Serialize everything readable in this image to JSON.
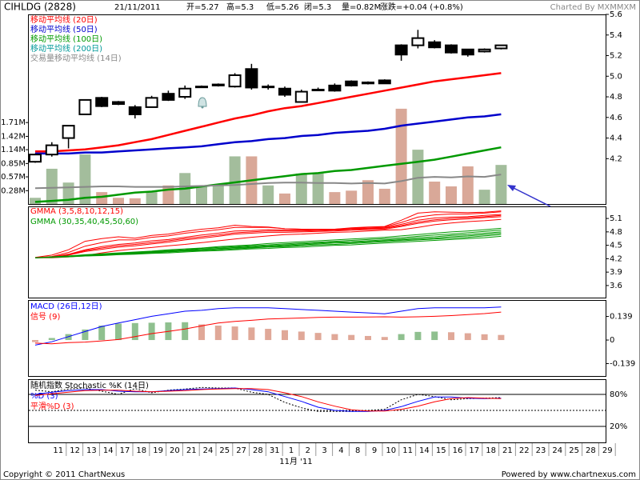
{
  "x_axis": {
    "categories": [
      null,
      "11",
      "12",
      "13",
      "14",
      "17",
      "18",
      "19",
      "20",
      "21",
      "24",
      "25",
      "27",
      "28",
      "31",
      "1",
      "2",
      "3",
      "4",
      "8",
      "9",
      "10",
      "11",
      "14",
      "15",
      "16",
      "17",
      "18",
      "21",
      "22",
      "23",
      "24",
      "25",
      "28",
      "29"
    ],
    "label": "11月 '11"
  },
  "footer": {
    "copyright": "Copyright © 2011 ChartNexus",
    "powered": "Powered by www.chartnexus.com"
  },
  "chart_data": [
    {
      "type": "candlestick",
      "title": "CIHLDG (2828)",
      "date": "21/11/2011",
      "quote": [
        "开=5.27",
        "高=5.3",
        "低=5.26",
        "闭=5.3",
        "量=0.82M",
        "涨跌=+0.04 (+0.8%)"
      ],
      "credit": "Charted By MXMMXM",
      "open": [
        4.17,
        4.24,
        4.4,
        4.63,
        4.79,
        4.75,
        4.7,
        4.7,
        4.83,
        4.8,
        4.9,
        4.91,
        4.9,
        5.07,
        4.9,
        4.88,
        4.75,
        4.87,
        4.91,
        4.95,
        4.94,
        4.96,
        5.3,
        5.3,
        5.33,
        5.3,
        5.26,
        5.24,
        5.27
      ],
      "high": [
        4.25,
        4.36,
        4.52,
        4.77,
        4.8,
        4.76,
        4.72,
        4.81,
        4.86,
        4.91,
        4.91,
        4.93,
        5.03,
        5.12,
        4.92,
        4.9,
        4.87,
        4.89,
        4.93,
        4.96,
        4.95,
        4.97,
        5.31,
        5.45,
        5.35,
        5.31,
        5.26,
        5.27,
        5.3
      ],
      "low": [
        4.16,
        4.22,
        4.3,
        4.63,
        4.7,
        4.72,
        4.59,
        4.7,
        4.76,
        4.78,
        4.89,
        4.9,
        4.89,
        4.87,
        4.87,
        4.8,
        4.75,
        4.86,
        4.85,
        4.9,
        4.92,
        4.93,
        5.15,
        5.27,
        5.27,
        5.22,
        5.19,
        5.23,
        5.26
      ],
      "close": [
        4.24,
        4.33,
        4.52,
        4.77,
        4.71,
        4.73,
        4.63,
        4.79,
        4.77,
        4.88,
        4.9,
        4.92,
        5.01,
        4.89,
        4.9,
        4.82,
        4.85,
        4.87,
        4.86,
        4.91,
        4.93,
        4.93,
        5.21,
        5.37,
        5.28,
        5.23,
        5.21,
        5.26,
        5.3
      ],
      "up_color": "#ffffff",
      "down_color": "#000000",
      "series": [
        {
          "name": "移动平均线 (20日)",
          "color": "#ff0000",
          "values": [
            4.27,
            4.27,
            4.28,
            4.29,
            4.31,
            4.33,
            4.36,
            4.39,
            4.43,
            4.47,
            4.51,
            4.55,
            4.59,
            4.62,
            4.66,
            4.69,
            4.71,
            4.74,
            4.77,
            4.8,
            4.83,
            4.86,
            4.89,
            4.92,
            4.95,
            4.97,
            4.99,
            5.01,
            5.03
          ]
        },
        {
          "name": "移动平均线 (50日)",
          "color": "#0000cc",
          "values": [
            4.25,
            4.25,
            4.25,
            4.26,
            4.26,
            4.27,
            4.28,
            4.29,
            4.3,
            4.31,
            4.32,
            4.34,
            4.36,
            4.37,
            4.39,
            4.4,
            4.42,
            4.43,
            4.45,
            4.46,
            4.47,
            4.49,
            4.52,
            4.54,
            4.56,
            4.58,
            4.6,
            4.61,
            4.63
          ]
        },
        {
          "name": "移动平均线 (100日)",
          "color": "#009900",
          "values": [
            3.78,
            3.79,
            3.8,
            3.82,
            3.83,
            3.85,
            3.87,
            3.88,
            3.9,
            3.91,
            3.93,
            3.95,
            3.97,
            3.99,
            4.01,
            4.03,
            4.05,
            4.06,
            4.08,
            4.09,
            4.11,
            4.13,
            4.15,
            4.17,
            4.19,
            4.22,
            4.25,
            4.28,
            4.31
          ]
        },
        {
          "name": "移动平均线 (200日)",
          "color": "#009999",
          "values": [
            null,
            null,
            null,
            null,
            null,
            null,
            null,
            null,
            null,
            null,
            null,
            null,
            null,
            null,
            null,
            null,
            null,
            null,
            null,
            null,
            null,
            null,
            null,
            null,
            null,
            null,
            null,
            null,
            null
          ]
        },
        {
          "name": "交易量移动平均线 (14日)",
          "color": "#888888",
          "axis": "y2",
          "values": [
            0.33,
            0.34,
            0.35,
            0.36,
            0.37,
            0.37,
            0.36,
            0.36,
            0.36,
            0.37,
            0.38,
            0.39,
            0.4,
            0.42,
            0.44,
            0.45,
            0.45,
            0.44,
            0.44,
            0.43,
            0.44,
            0.43,
            0.48,
            0.55,
            0.57,
            0.56,
            0.58,
            0.57,
            0.62
          ]
        }
      ],
      "volume": {
        "values": [
          0.13,
          0.74,
          0.45,
          1.04,
          0.25,
          0.13,
          0.12,
          0.25,
          0.39,
          0.65,
          0.39,
          0.4,
          1.0,
          1.0,
          0.39,
          0.22,
          0.64,
          0.64,
          0.25,
          0.28,
          0.5,
          0.32,
          2.0,
          1.14,
          0.47,
          0.37,
          0.79,
          0.3,
          0.82
        ],
        "up_color": "#a3bd9c",
        "down_color": "#d9a898"
      },
      "ylim": [
        3.76,
        5.6
      ],
      "yticks": [
        4.2,
        4.4,
        4.6,
        4.8,
        {
          "value": 5,
          "label": "5.0"
        },
        5.2,
        5.4,
        5.6
      ],
      "y2lim": [
        0,
        3.98
      ],
      "y2ticks": [
        {
          "value": 0.28,
          "label": "0.28M"
        },
        {
          "value": 0.57,
          "label": "0.57M"
        },
        {
          "value": 0.85,
          "label": "0.85M"
        },
        {
          "value": 1.14,
          "label": "1.14M"
        },
        {
          "value": 1.42,
          "label": "1.42M"
        },
        {
          "value": 1.71,
          "label": "1.71M"
        }
      ]
    },
    {
      "type": "line",
      "legend": [
        {
          "name": "GMMA (3,5,8,10,12,15)",
          "color": "#ff0000"
        },
        {
          "name": "GMMA (30,35,40,45,50,60)",
          "color": "#009900"
        }
      ],
      "series": [
        {
          "color": "#ff0000",
          "values": [
            4.23,
            4.28,
            4.4,
            4.59,
            4.65,
            4.69,
            4.66,
            4.72,
            4.75,
            4.81,
            4.86,
            4.89,
            4.95,
            4.92,
            4.91,
            4.87,
            4.86,
            4.86,
            4.86,
            4.89,
            4.91,
            4.92,
            5.06,
            5.22,
            5.25,
            5.24,
            5.23,
            5.24,
            5.27
          ]
        },
        {
          "color": "#ff0000",
          "values": [
            4.22,
            4.25,
            4.34,
            4.48,
            4.56,
            4.62,
            4.62,
            4.68,
            4.71,
            4.77,
            4.81,
            4.85,
            4.9,
            4.9,
            4.9,
            4.87,
            4.86,
            4.86,
            4.86,
            4.88,
            4.9,
            4.91,
            5.01,
            5.13,
            5.18,
            5.2,
            5.2,
            5.22,
            5.25
          ]
        },
        {
          "color": "#ff0000",
          "values": [
            4.22,
            4.24,
            4.3,
            4.4,
            4.47,
            4.52,
            4.55,
            4.6,
            4.63,
            4.68,
            4.73,
            4.77,
            4.82,
            4.83,
            4.85,
            4.84,
            4.84,
            4.85,
            4.85,
            4.87,
            4.88,
            4.89,
            4.97,
            5.06,
            5.11,
            5.13,
            5.14,
            5.17,
            5.19
          ]
        },
        {
          "color": "#ff0000",
          "values": [
            4.22,
            4.24,
            4.29,
            4.38,
            4.44,
            4.49,
            4.52,
            4.56,
            4.6,
            4.65,
            4.69,
            4.73,
            4.78,
            4.8,
            4.82,
            4.82,
            4.82,
            4.83,
            4.84,
            4.85,
            4.87,
            4.88,
            4.94,
            5.02,
            5.07,
            5.1,
            5.12,
            5.14,
            5.17
          ]
        },
        {
          "color": "#ff0000",
          "values": [
            4.22,
            4.24,
            4.28,
            4.36,
            4.41,
            4.46,
            4.49,
            4.53,
            4.57,
            4.62,
            4.66,
            4.7,
            4.75,
            4.77,
            4.79,
            4.79,
            4.8,
            4.81,
            4.82,
            4.84,
            4.85,
            4.86,
            4.92,
            4.99,
            5.04,
            5.07,
            5.09,
            5.12,
            5.14
          ]
        },
        {
          "color": "#ff0000",
          "values": [
            4.22,
            4.22,
            4.24,
            4.27,
            4.33,
            4.38,
            4.42,
            4.45,
            4.49,
            4.52,
            4.56,
            4.6,
            4.64,
            4.68,
            4.71,
            4.74,
            4.75,
            4.77,
            4.79,
            4.8,
            4.82,
            4.84,
            4.85,
            4.9,
            4.96,
            5.0,
            5.03,
            5.05,
            5.08
          ]
        },
        {
          "color": "#009900",
          "values": [
            4.22,
            4.24,
            4.26,
            4.29,
            4.31,
            4.33,
            4.35,
            4.37,
            4.4,
            4.42,
            4.44,
            4.47,
            4.49,
            4.51,
            4.54,
            4.56,
            4.58,
            4.6,
            4.62,
            4.64,
            4.66,
            4.68,
            4.71,
            4.74,
            4.77,
            4.8,
            4.82,
            4.85,
            4.88
          ]
        },
        {
          "color": "#009900",
          "values": [
            4.22,
            4.24,
            4.26,
            4.28,
            4.3,
            4.32,
            4.34,
            4.36,
            4.38,
            4.4,
            4.43,
            4.45,
            4.47,
            4.49,
            4.51,
            4.53,
            4.55,
            4.57,
            4.59,
            4.61,
            4.63,
            4.65,
            4.67,
            4.7,
            4.73,
            4.75,
            4.78,
            4.81,
            4.84
          ]
        },
        {
          "color": "#009900",
          "values": [
            4.22,
            4.24,
            4.25,
            4.27,
            4.29,
            4.31,
            4.33,
            4.35,
            4.37,
            4.39,
            4.41,
            4.43,
            4.45,
            4.47,
            4.49,
            4.51,
            4.53,
            4.55,
            4.57,
            4.58,
            4.6,
            4.62,
            4.64,
            4.67,
            4.69,
            4.72,
            4.74,
            4.77,
            4.8
          ]
        },
        {
          "color": "#009900",
          "values": [
            4.22,
            4.23,
            4.25,
            4.27,
            4.28,
            4.3,
            4.32,
            4.34,
            4.36,
            4.38,
            4.4,
            4.42,
            4.44,
            4.45,
            4.47,
            4.49,
            4.51,
            4.53,
            4.55,
            4.56,
            4.58,
            4.6,
            4.62,
            4.64,
            4.66,
            4.69,
            4.71,
            4.74,
            4.77
          ]
        },
        {
          "color": "#009900",
          "values": [
            4.22,
            4.23,
            4.25,
            4.26,
            4.28,
            4.3,
            4.31,
            4.33,
            4.35,
            4.37,
            4.38,
            4.4,
            4.42,
            4.44,
            4.46,
            4.47,
            4.49,
            4.51,
            4.52,
            4.54,
            4.56,
            4.58,
            4.6,
            4.62,
            4.64,
            4.66,
            4.68,
            4.71,
            4.74
          ]
        },
        {
          "color": "#009900",
          "values": [
            4.22,
            4.23,
            4.24,
            4.26,
            4.27,
            4.29,
            4.3,
            4.32,
            4.33,
            4.35,
            4.37,
            4.38,
            4.4,
            4.42,
            4.43,
            4.45,
            4.46,
            4.48,
            4.5,
            4.51,
            4.53,
            4.55,
            4.57,
            4.59,
            4.61,
            4.63,
            4.65,
            4.67,
            4.7
          ]
        }
      ],
      "ylim": [
        3.33,
        5.37
      ],
      "yticks": [
        3.6,
        3.9,
        4.2,
        4.5,
        4.8,
        5.1
      ]
    },
    {
      "type": "macd",
      "series": [
        {
          "name": "MACD (26日,12日)",
          "color": "#0000ff",
          "values": [
            -0.03,
            -0.01,
            0.02,
            0.05,
            0.08,
            0.1,
            0.12,
            0.14,
            0.155,
            0.17,
            0.175,
            0.185,
            0.19,
            0.19,
            0.19,
            0.185,
            0.18,
            0.175,
            0.17,
            0.165,
            0.16,
            0.155,
            0.17,
            0.185,
            0.19,
            0.19,
            0.19,
            0.19,
            0.195
          ]
        },
        {
          "name": "信号 (9)",
          "color": "#ff0000",
          "values": [
            -0.018,
            -0.022,
            -0.015,
            -0.012,
            -0.005,
            0.003,
            0.02,
            0.038,
            0.051,
            0.065,
            0.083,
            0.1,
            0.11,
            0.116,
            0.124,
            0.127,
            0.13,
            0.133,
            0.135,
            0.135,
            0.136,
            0.137,
            0.135,
            0.137,
            0.14,
            0.144,
            0.15,
            0.156,
            0.165
          ]
        }
      ],
      "histogram": {
        "values": [
          -0.012,
          0.012,
          0.035,
          0.062,
          0.085,
          0.097,
          0.1,
          0.102,
          0.104,
          0.105,
          0.092,
          0.085,
          0.08,
          0.074,
          0.066,
          0.058,
          0.05,
          0.042,
          0.035,
          0.03,
          0.024,
          0.018,
          0.035,
          0.048,
          0.05,
          0.046,
          0.04,
          0.034,
          0.03
        ],
        "up_color": "#8fc08f",
        "down_color": "#e0a898"
      },
      "ylim": [
        -0.212,
        0.236
      ],
      "yticks": [
        0.139,
        0,
        -0.139
      ]
    },
    {
      "type": "line",
      "series": [
        {
          "name": "随机指数 Stochastic %K (14日)",
          "color": "#000000",
          "dashed": true,
          "values": [
            88,
            85,
            90,
            92,
            86,
            80,
            91,
            83,
            88,
            90,
            93,
            92,
            92,
            84,
            80,
            65,
            55,
            48,
            48,
            48,
            50,
            52,
            70,
            80,
            76,
            70,
            72,
            73,
            74
          ]
        },
        {
          "name": "%D (3)",
          "color": "#0000ff",
          "values": [
            80,
            84,
            87,
            89,
            89,
            86,
            85,
            85,
            87,
            89,
            90,
            91,
            92,
            89,
            85,
            76,
            67,
            56,
            50,
            48,
            48,
            50,
            57,
            67,
            75,
            75,
            73,
            72,
            73
          ]
        },
        {
          "name": "平滑%D (3)",
          "color": "#ff0000",
          "values": [
            78,
            81,
            84,
            87,
            88,
            88,
            86,
            85,
            86,
            87,
            89,
            90,
            91,
            91,
            89,
            83,
            76,
            66,
            58,
            51,
            49,
            49,
            52,
            58,
            66,
            72,
            74,
            73,
            72
          ]
        }
      ],
      "ylim": [
        -10,
        108.5
      ],
      "yticks": [
        {
          "value": 80,
          "label": "80%"
        },
        {
          "value": 20,
          "label": "20%"
        }
      ],
      "grid": true,
      "reference_lines": [
        {
          "value": 50,
          "dashed": true
        }
      ]
    }
  ]
}
